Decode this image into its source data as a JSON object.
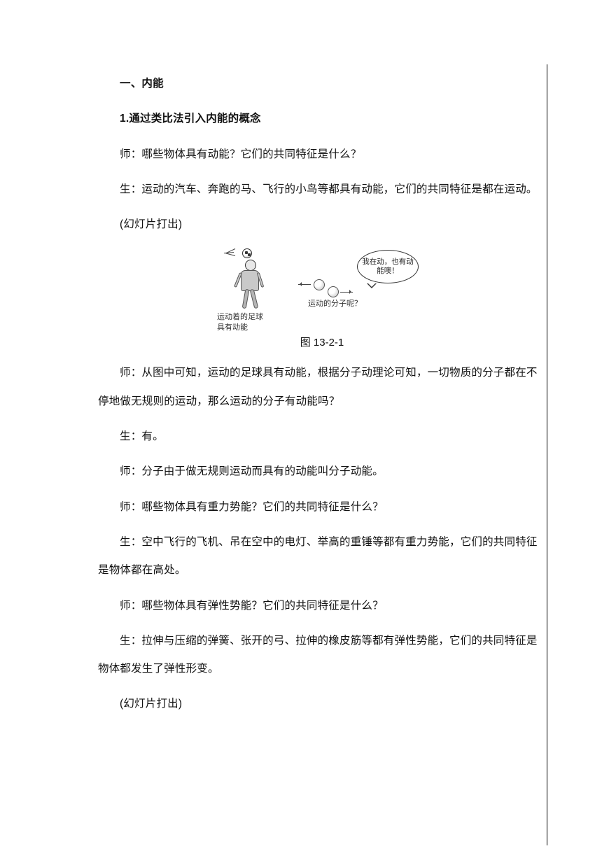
{
  "section_heading": "一、内能",
  "subheading": "1.通过类比法引入内能的概念",
  "p1": "师：哪些物体具有动能？它们的共同特征是什么？",
  "p2": "生：运动的汽车、奔跑的马、飞行的小鸟等都具有动能，它们的共同特征是都在运动。",
  "p3": "(幻灯片打出)",
  "figure": {
    "caption_a_line1": "运动着的足球",
    "caption_a_line2": "具有动能",
    "caption_b": "运动的分子呢？",
    "bubble_text": "我在动，也有动能噢！",
    "number": "图 13-2-1"
  },
  "p4": "师：从图中可知，运动的足球具有动能，根据分子动理论可知，一切物质的分子都在不停地做无规则的运动，那么运动的分子有动能吗？",
  "p5": "生：有。",
  "p6": "师：分子由于做无规则运动而具有的动能叫分子动能。",
  "p7": "师：哪些物体具有重力势能？它们的共同特征是什么？",
  "p8": "生：空中飞行的飞机、吊在空中的电灯、举高的重锤等都有重力势能，它们的共同特征是物体都在高处。",
  "p9": "师：哪些物体具有弹性势能？它们的共同特征是什么？",
  "p10": "生：拉伸与压缩的弹簧、张开的弓、拉伸的橡皮筋等都有弹性势能，它们的共同特征是物体都发生了弹性形变。",
  "p11": "(幻灯片打出)"
}
